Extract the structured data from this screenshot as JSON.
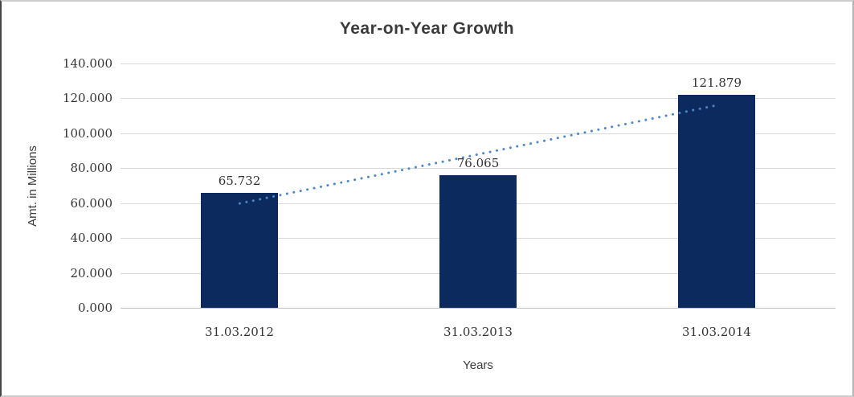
{
  "chart_data": {
    "type": "bar",
    "title": "Year-on-Year Growth",
    "categories": [
      "31.03.2012",
      "31.03.2013",
      "31.03.2014"
    ],
    "values": [
      65.732,
      76.065,
      121.879
    ],
    "value_labels": [
      "65.732",
      "76.065",
      "121.879"
    ],
    "xlabel": "Years",
    "ylabel": "Amt. in Millions",
    "ylim": [
      0,
      140
    ],
    "ytick_step": 20,
    "ytick_labels": [
      "0.000",
      "20.000",
      "40.000",
      "60.000",
      "80.000",
      "100.000",
      "120.000",
      "140.000"
    ],
    "grid": true,
    "legend_position": "none",
    "bar_color": "#0d2a5e",
    "grid_color": "#d9d9d9",
    "axis_line_color": "#c0c0c0",
    "text_color": "#333333",
    "trendline": {
      "type": "linear",
      "style": "dotted",
      "color": "#4e86c6",
      "start_value": 59.8,
      "end_value": 116.0
    }
  }
}
